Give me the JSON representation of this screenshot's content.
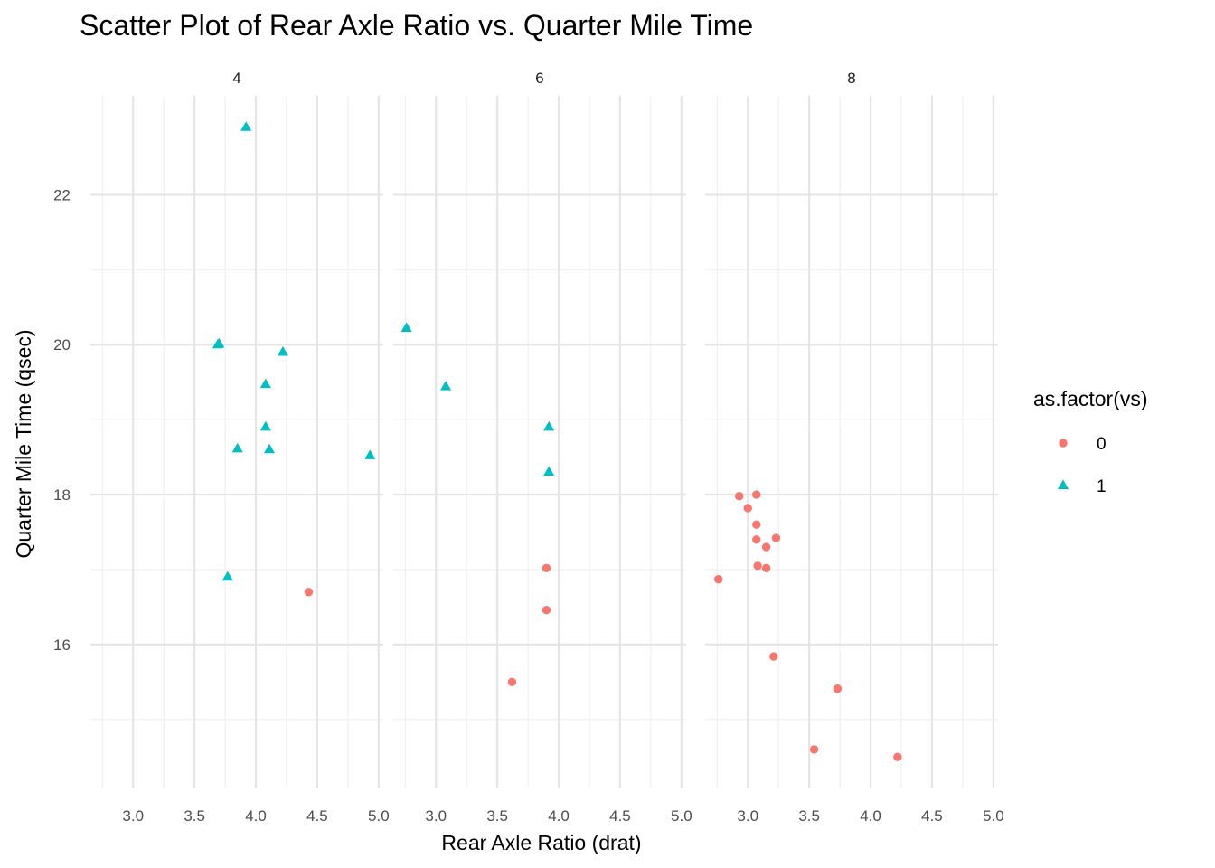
{
  "chart_data": {
    "type": "scatter",
    "title": "Scatter Plot of Rear Axle Ratio vs. Quarter Mile Time",
    "xlabel": "Rear Axle Ratio (drat)",
    "ylabel": "Quarter Mile Time (qsec)",
    "xlim": [
      2.76,
      4.93
    ],
    "ylim": [
      14.5,
      22.9
    ],
    "x_ticks": [
      "3.0",
      "3.5",
      "4.0",
      "4.5",
      "5.0"
    ],
    "x_tick_values": [
      3.0,
      3.5,
      4.0,
      4.5,
      5.0
    ],
    "y_ticks": [
      "16",
      "18",
      "20",
      "22"
    ],
    "y_tick_values": [
      16,
      18,
      20,
      22
    ],
    "grid": true,
    "facet_by": "cyl",
    "facets": [
      "4",
      "6",
      "8"
    ],
    "legend": {
      "title": "as.factor(vs)",
      "position": "right",
      "entries": [
        {
          "label": "0",
          "shape": "circle",
          "color": "#F8766D"
        },
        {
          "label": "1",
          "shape": "triangle",
          "color": "#00BFC4"
        }
      ]
    },
    "series": [
      {
        "name": "0",
        "color": "#F8766D",
        "shape": "circle",
        "points": [
          {
            "facet": "4",
            "x": 4.43,
            "y": 16.7
          },
          {
            "facet": "6",
            "x": 3.9,
            "y": 16.46
          },
          {
            "facet": "6",
            "x": 3.9,
            "y": 17.02
          },
          {
            "facet": "6",
            "x": 3.62,
            "y": 15.5
          },
          {
            "facet": "8",
            "x": 3.15,
            "y": 17.02
          },
          {
            "facet": "8",
            "x": 3.21,
            "y": 15.84
          },
          {
            "facet": "8",
            "x": 3.07,
            "y": 17.4
          },
          {
            "facet": "8",
            "x": 3.07,
            "y": 17.6
          },
          {
            "facet": "8",
            "x": 3.07,
            "y": 18.0
          },
          {
            "facet": "8",
            "x": 2.93,
            "y": 17.98
          },
          {
            "facet": "8",
            "x": 3.0,
            "y": 17.82
          },
          {
            "facet": "8",
            "x": 3.23,
            "y": 17.42
          },
          {
            "facet": "8",
            "x": 2.76,
            "y": 16.87
          },
          {
            "facet": "8",
            "x": 3.15,
            "y": 17.3
          },
          {
            "facet": "8",
            "x": 3.73,
            "y": 15.41
          },
          {
            "facet": "8",
            "x": 3.08,
            "y": 17.05
          },
          {
            "facet": "8",
            "x": 4.22,
            "y": 14.5
          },
          {
            "facet": "8",
            "x": 3.54,
            "y": 14.6
          }
        ]
      },
      {
        "name": "1",
        "color": "#00BFC4",
        "shape": "triangle",
        "points": [
          {
            "facet": "4",
            "x": 3.85,
            "y": 18.61
          },
          {
            "facet": "4",
            "x": 3.69,
            "y": 20.0
          },
          {
            "facet": "4",
            "x": 3.92,
            "y": 22.9
          },
          {
            "facet": "4",
            "x": 4.08,
            "y": 19.47
          },
          {
            "facet": "4",
            "x": 4.93,
            "y": 18.52
          },
          {
            "facet": "4",
            "x": 4.22,
            "y": 19.9
          },
          {
            "facet": "4",
            "x": 3.7,
            "y": 20.01
          },
          {
            "facet": "4",
            "x": 4.08,
            "y": 18.9
          },
          {
            "facet": "4",
            "x": 4.11,
            "y": 18.6
          },
          {
            "facet": "4",
            "x": 3.77,
            "y": 16.9
          },
          {
            "facet": "6",
            "x": 3.08,
            "y": 19.44
          },
          {
            "facet": "6",
            "x": 2.76,
            "y": 20.22
          },
          {
            "facet": "6",
            "x": 3.92,
            "y": 18.3
          },
          {
            "facet": "6",
            "x": 3.92,
            "y": 18.9
          }
        ]
      }
    ]
  }
}
